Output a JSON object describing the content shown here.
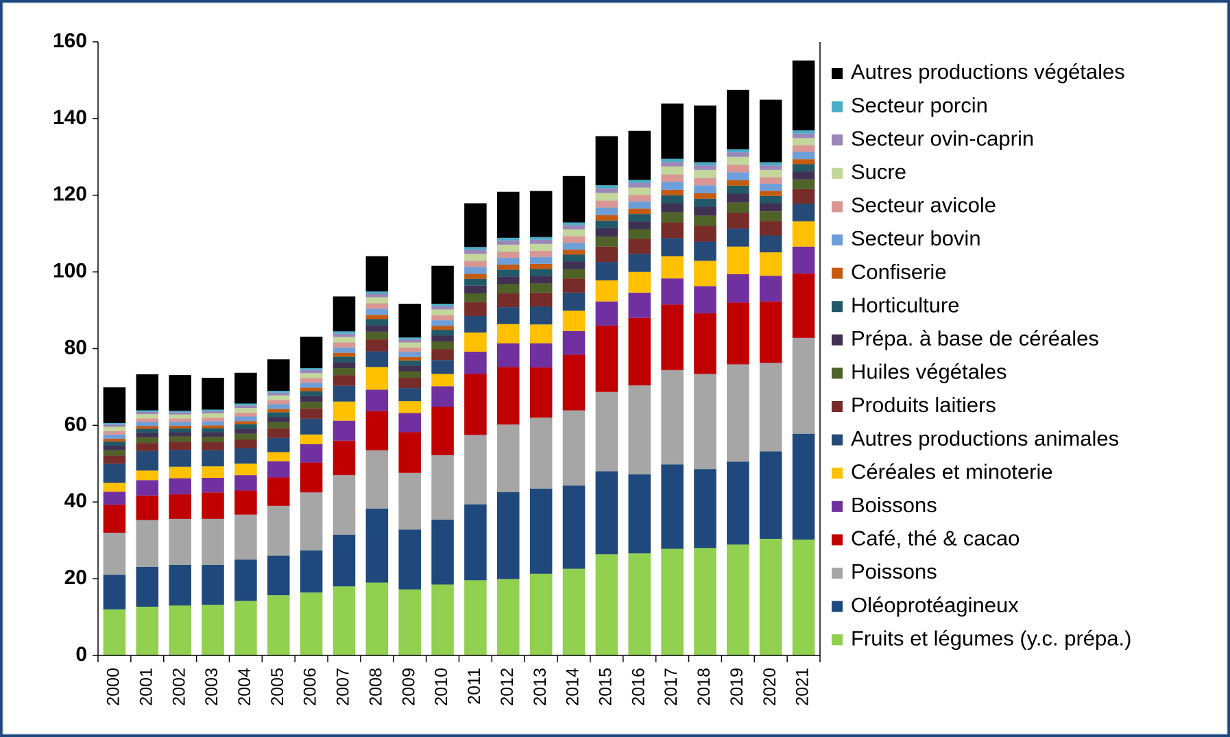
{
  "chart_data": {
    "type": "stacked_bar",
    "categories": [
      "2000",
      "2001",
      "2002",
      "2003",
      "2004",
      "2005",
      "2006",
      "2007",
      "2008",
      "2009",
      "2010",
      "2011",
      "2012",
      "2013",
      "2014",
      "2015",
      "2016",
      "2017",
      "2018",
      "2019",
      "2020",
      "2021"
    ],
    "ylim": [
      0,
      160
    ],
    "yticks": [
      0,
      20,
      40,
      60,
      80,
      100,
      120,
      140,
      160
    ],
    "series": [
      {
        "name": "Fruits et légumes (y.c. prépa.)",
        "color": "#92d050",
        "values": [
          12,
          12.7,
          13,
          13.2,
          14.2,
          15.7,
          16.4,
          18,
          19,
          17.2,
          18.5,
          19.6,
          19.9,
          21.3,
          22.6,
          26.4,
          26.6,
          27.8,
          28,
          28.9,
          30.4,
          30.2
        ]
      },
      {
        "name": "Oléoprotéagineux",
        "color": "#1f497d",
        "values": [
          9,
          10.4,
          10.6,
          10.4,
          10.8,
          10.3,
          11,
          13.5,
          19.3,
          15.6,
          16.9,
          19.8,
          22.7,
          22.2,
          21.7,
          21.6,
          20.6,
          22,
          20.6,
          21.6,
          22.8,
          27.6
        ]
      },
      {
        "name": "Poissons",
        "color": "#a6a6a6",
        "values": [
          11,
          12.2,
          12,
          12,
          11.7,
          13,
          15.1,
          15.5,
          15.2,
          14.8,
          16.8,
          18.1,
          17.6,
          18.5,
          19.6,
          20.7,
          23.2,
          24.6,
          24.8,
          25.4,
          23.1,
          25
        ]
      },
      {
        "name": "Café, thé & cacao",
        "color": "#c00000",
        "values": [
          7.3,
          6.4,
          6.4,
          6.9,
          6.3,
          7.4,
          7.8,
          9,
          10.2,
          10.6,
          12.6,
          15.9,
          15,
          13.1,
          14.5,
          17.3,
          17.6,
          17.1,
          15.8,
          16.1,
          16,
          16.8
        ]
      },
      {
        "name": "Boissons",
        "color": "#7030a0",
        "values": [
          3.4,
          4,
          4.2,
          3.8,
          4,
          4.2,
          4.8,
          5.2,
          5.6,
          5,
          5.4,
          5.8,
          6.2,
          6.3,
          6.2,
          6.3,
          6.6,
          6.8,
          7.1,
          7.4,
          6.7,
          7
        ]
      },
      {
        "name": "Céréales et minoterie",
        "color": "#ffc000",
        "values": [
          2.3,
          2.5,
          3,
          3,
          3,
          2.4,
          2.5,
          5,
          5.9,
          3.1,
          3.2,
          5,
          5,
          4.9,
          5.3,
          5.5,
          5.4,
          5.8,
          6.6,
          7.2,
          6.1,
          6.6
        ]
      },
      {
        "name": "Autres productions animales",
        "color": "#254a78",
        "values": [
          5,
          5.1,
          4.4,
          4.2,
          4,
          3.7,
          4.1,
          4.1,
          4.1,
          3.4,
          3.6,
          4.3,
          4.4,
          4.7,
          4.7,
          4.8,
          4.7,
          4.7,
          5,
          4.7,
          4.4,
          4.6
        ]
      },
      {
        "name": "Produits laitiers",
        "color": "#772c2a",
        "values": [
          2.1,
          2.1,
          2.1,
          2.1,
          2.3,
          2.5,
          2.7,
          2.8,
          3.1,
          2.7,
          2.9,
          3.6,
          3.6,
          3.6,
          3.7,
          4.0,
          3.9,
          4.1,
          4.1,
          4.1,
          3.8,
          3.8
        ]
      },
      {
        "name": "Huiles végétales",
        "color": "#4f6228",
        "values": [
          1.4,
          1.4,
          1.4,
          1.4,
          1.5,
          1.6,
          1.7,
          1.8,
          2.0,
          1.7,
          1.9,
          2.3,
          2.4,
          2.4,
          2.4,
          2.6,
          2.5,
          2.7,
          2.7,
          2.7,
          2.5,
          2.5
        ]
      },
      {
        "name": "Prépa. à base de céréales",
        "color": "#403152",
        "values": [
          1.2,
          1.2,
          1.1,
          1.2,
          1.3,
          1.4,
          1.5,
          1.6,
          1.7,
          1.5,
          1.6,
          2.0,
          2.0,
          2.0,
          2.0,
          2.2,
          2.1,
          2.3,
          2.3,
          2.3,
          2.1,
          2.1
        ]
      },
      {
        "name": "Horticulture",
        "color": "#215968",
        "values": [
          1.1,
          1.1,
          1.0,
          1.1,
          1.2,
          1.2,
          1.3,
          1.4,
          1.6,
          1.3,
          1.5,
          1.8,
          1.8,
          1.8,
          1.8,
          2.0,
          1.9,
          2.1,
          2.1,
          2.1,
          1.9,
          1.9
        ]
      },
      {
        "name": "Confiserie",
        "color": "#c55a11",
        "values": [
          0.7,
          0.7,
          0.7,
          0.7,
          0.8,
          0.9,
          0.9,
          1.0,
          1.1,
          0.9,
          1.0,
          1.3,
          1.3,
          1.3,
          1.3,
          1.4,
          1.4,
          1.4,
          1.4,
          1.4,
          1.3,
          1.3
        ]
      },
      {
        "name": "Secteur bovin",
        "color": "#6f9fd8",
        "values": [
          1.1,
          1.1,
          1.0,
          1.1,
          1.2,
          1.2,
          1.3,
          1.4,
          1.6,
          1.3,
          1.5,
          1.8,
          1.8,
          1.8,
          1.8,
          2.0,
          1.9,
          2.1,
          2.1,
          2.1,
          1.9,
          1.9
        ]
      },
      {
        "name": "Secteur avicole",
        "color": "#d99694",
        "values": [
          0.9,
          0.9,
          0.9,
          0.9,
          1.0,
          1.1,
          1.2,
          1.3,
          1.4,
          1.2,
          1.3,
          1.6,
          1.6,
          1.6,
          1.7,
          1.8,
          1.7,
          1.9,
          1.9,
          1.9,
          1.7,
          1.7
        ]
      },
      {
        "name": "Sucre",
        "color": "#c3d69b",
        "values": [
          1.1,
          1.1,
          1.0,
          1.1,
          1.2,
          1.2,
          1.3,
          1.4,
          1.6,
          1.3,
          1.5,
          1.8,
          1.8,
          1.8,
          1.8,
          2.0,
          1.9,
          2.1,
          2.1,
          2.1,
          1.9,
          1.9
        ]
      },
      {
        "name": "Secteur ovin-caprin",
        "color": "#9b87b8",
        "values": [
          0.6,
          0.6,
          0.6,
          0.6,
          0.7,
          0.7,
          0.8,
          0.9,
          0.9,
          0.8,
          0.9,
          1.1,
          1.1,
          1.1,
          1.1,
          1.2,
          1.2,
          1.2,
          1.2,
          1.2,
          1.2,
          1.2
        ]
      },
      {
        "name": "Secteur porcin",
        "color": "#4bacc6",
        "values": [
          0.4,
          0.4,
          0.4,
          0.4,
          0.5,
          0.5,
          0.5,
          0.6,
          0.6,
          0.5,
          0.6,
          0.7,
          0.7,
          0.7,
          0.7,
          0.8,
          0.8,
          0.8,
          0.8,
          0.8,
          0.8,
          0.8
        ]
      },
      {
        "name": "Autres productions végétales",
        "color": "#000000",
        "values": [
          9.3,
          9.4,
          9.3,
          8.3,
          8,
          8.2,
          8.2,
          9.1,
          9.2,
          8.8,
          9.9,
          11.4,
          12,
          12,
          12.1,
          12.8,
          12.8,
          14.4,
          14.8,
          15.5,
          16.3,
          18.2
        ]
      }
    ]
  }
}
